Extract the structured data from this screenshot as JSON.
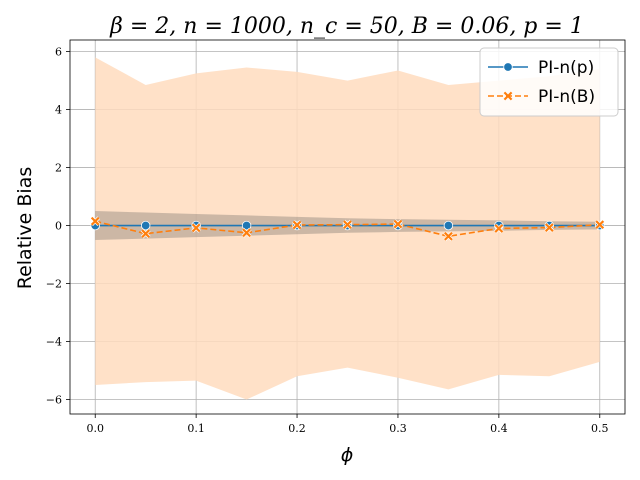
{
  "chart_data": {
    "type": "line",
    "title": "β = 2, n = 1000, n_c = 50, B = 0.06, p = 1",
    "xlabel": "ϕ",
    "ylabel": "Relative Bias",
    "xlim": [
      -0.025,
      0.525
    ],
    "ylim": [
      -6.5,
      6.4
    ],
    "x_ticks": [
      0.0,
      0.1,
      0.2,
      0.3,
      0.4,
      0.5
    ],
    "x_tick_labels": [
      "0.0",
      "0.1",
      "0.2",
      "0.3",
      "0.4",
      "0.5"
    ],
    "y_ticks": [
      6,
      4,
      2,
      0,
      -2,
      -4,
      -6
    ],
    "y_tick_labels": [
      "6",
      "4",
      "2",
      "0",
      "−2",
      "−4",
      "−6"
    ],
    "grid": true,
    "legend_position": "top-right",
    "x": [
      0.0,
      0.05,
      0.1,
      0.15,
      0.2,
      0.25,
      0.3,
      0.35,
      0.4,
      0.45,
      0.5
    ],
    "series": [
      {
        "name": "PI-n(p)",
        "color": "#1f77b4",
        "marker": "circle",
        "linestyle": "solid",
        "values": [
          0.0,
          0.0,
          0.0,
          0.0,
          0.0,
          0.0,
          0.0,
          0.0,
          0.0,
          0.0,
          0.0
        ],
        "band_upper": [
          0.5,
          0.45,
          0.4,
          0.35,
          0.3,
          0.25,
          0.22,
          0.2,
          0.18,
          0.15,
          0.13
        ],
        "band_lower": [
          -0.5,
          -0.45,
          -0.4,
          -0.35,
          -0.3,
          -0.25,
          -0.22,
          -0.2,
          -0.18,
          -0.15,
          -0.13
        ],
        "band_color": "#555555"
      },
      {
        "name": "PI-n(B)",
        "color": "#ff7f0e",
        "marker": "x",
        "linestyle": "dashed",
        "values": [
          0.15,
          -0.28,
          -0.08,
          -0.25,
          0.02,
          0.03,
          0.05,
          -0.37,
          -0.1,
          -0.07,
          0.03
        ],
        "band_upper": [
          5.8,
          4.85,
          5.25,
          5.45,
          5.3,
          5.0,
          5.35,
          4.85,
          5.0,
          5.15,
          5.4
        ],
        "band_lower": [
          -5.5,
          -5.4,
          -5.35,
          -6.0,
          -5.2,
          -4.9,
          -5.25,
          -5.65,
          -5.15,
          -5.2,
          -4.7
        ],
        "band_color": "#ffdcbe"
      }
    ]
  }
}
